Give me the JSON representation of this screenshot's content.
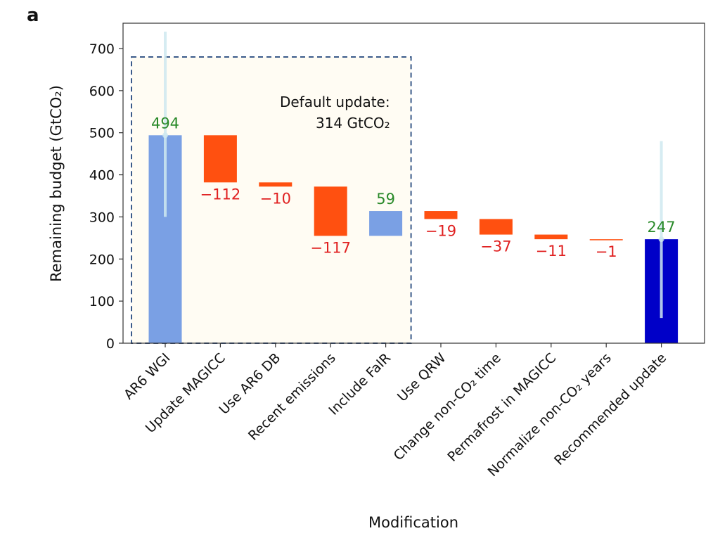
{
  "panel_label": "a",
  "chart_data": {
    "type": "bar",
    "subtype": "waterfall",
    "xlabel": "Modification",
    "ylabel": "Remaining budget (GtCO₂)",
    "ylim": [
      0,
      750
    ],
    "yticks": [
      0,
      100,
      200,
      300,
      400,
      500,
      600,
      700
    ],
    "grid": false,
    "categories": [
      "AR6 WGI",
      "Update MAGICC",
      "Use AR6 DB",
      "Recent emissions",
      "Include FaIR",
      "Use QRW",
      "Change non-CO₂ time",
      "Permafrost in MAGICC",
      "Normalize non-CO₂ years",
      "Recommended update"
    ],
    "bars": [
      {
        "kind": "total",
        "start": 0,
        "end": 494,
        "label": "494",
        "error": [
          300,
          740
        ]
      },
      {
        "kind": "decrease",
        "start": 494,
        "end": 382,
        "label": "−112"
      },
      {
        "kind": "decrease",
        "start": 382,
        "end": 372,
        "label": "−10"
      },
      {
        "kind": "decrease",
        "start": 372,
        "end": 255,
        "label": "−117"
      },
      {
        "kind": "increase",
        "start": 255,
        "end": 314,
        "label": "59"
      },
      {
        "kind": "decrease",
        "start": 314,
        "end": 295,
        "label": "−19"
      },
      {
        "kind": "decrease",
        "start": 295,
        "end": 258,
        "label": "−37"
      },
      {
        "kind": "decrease",
        "start": 258,
        "end": 247,
        "label": "−11"
      },
      {
        "kind": "decrease",
        "start": 247,
        "end": 246,
        "label": "−1"
      },
      {
        "kind": "final",
        "start": 0,
        "end": 247,
        "label": "247",
        "error": [
          60,
          480
        ]
      }
    ],
    "annotation": {
      "line1": "Default update:",
      "line2": "314 GtCO₂",
      "box_span": [
        "AR6 WGI",
        "Include FaIR"
      ],
      "box_top": 680
    },
    "colors": {
      "total": "#7aa0e4",
      "increase": "#7aa0e4",
      "decrease": "#ff5010",
      "final": "#0000c8",
      "error_bar": "#cfe9f0",
      "positive_label": "#2a8a2a",
      "negative_label": "#e02020",
      "box_fill": "#fffcf3",
      "box_stroke": "#3a5a8a"
    }
  }
}
